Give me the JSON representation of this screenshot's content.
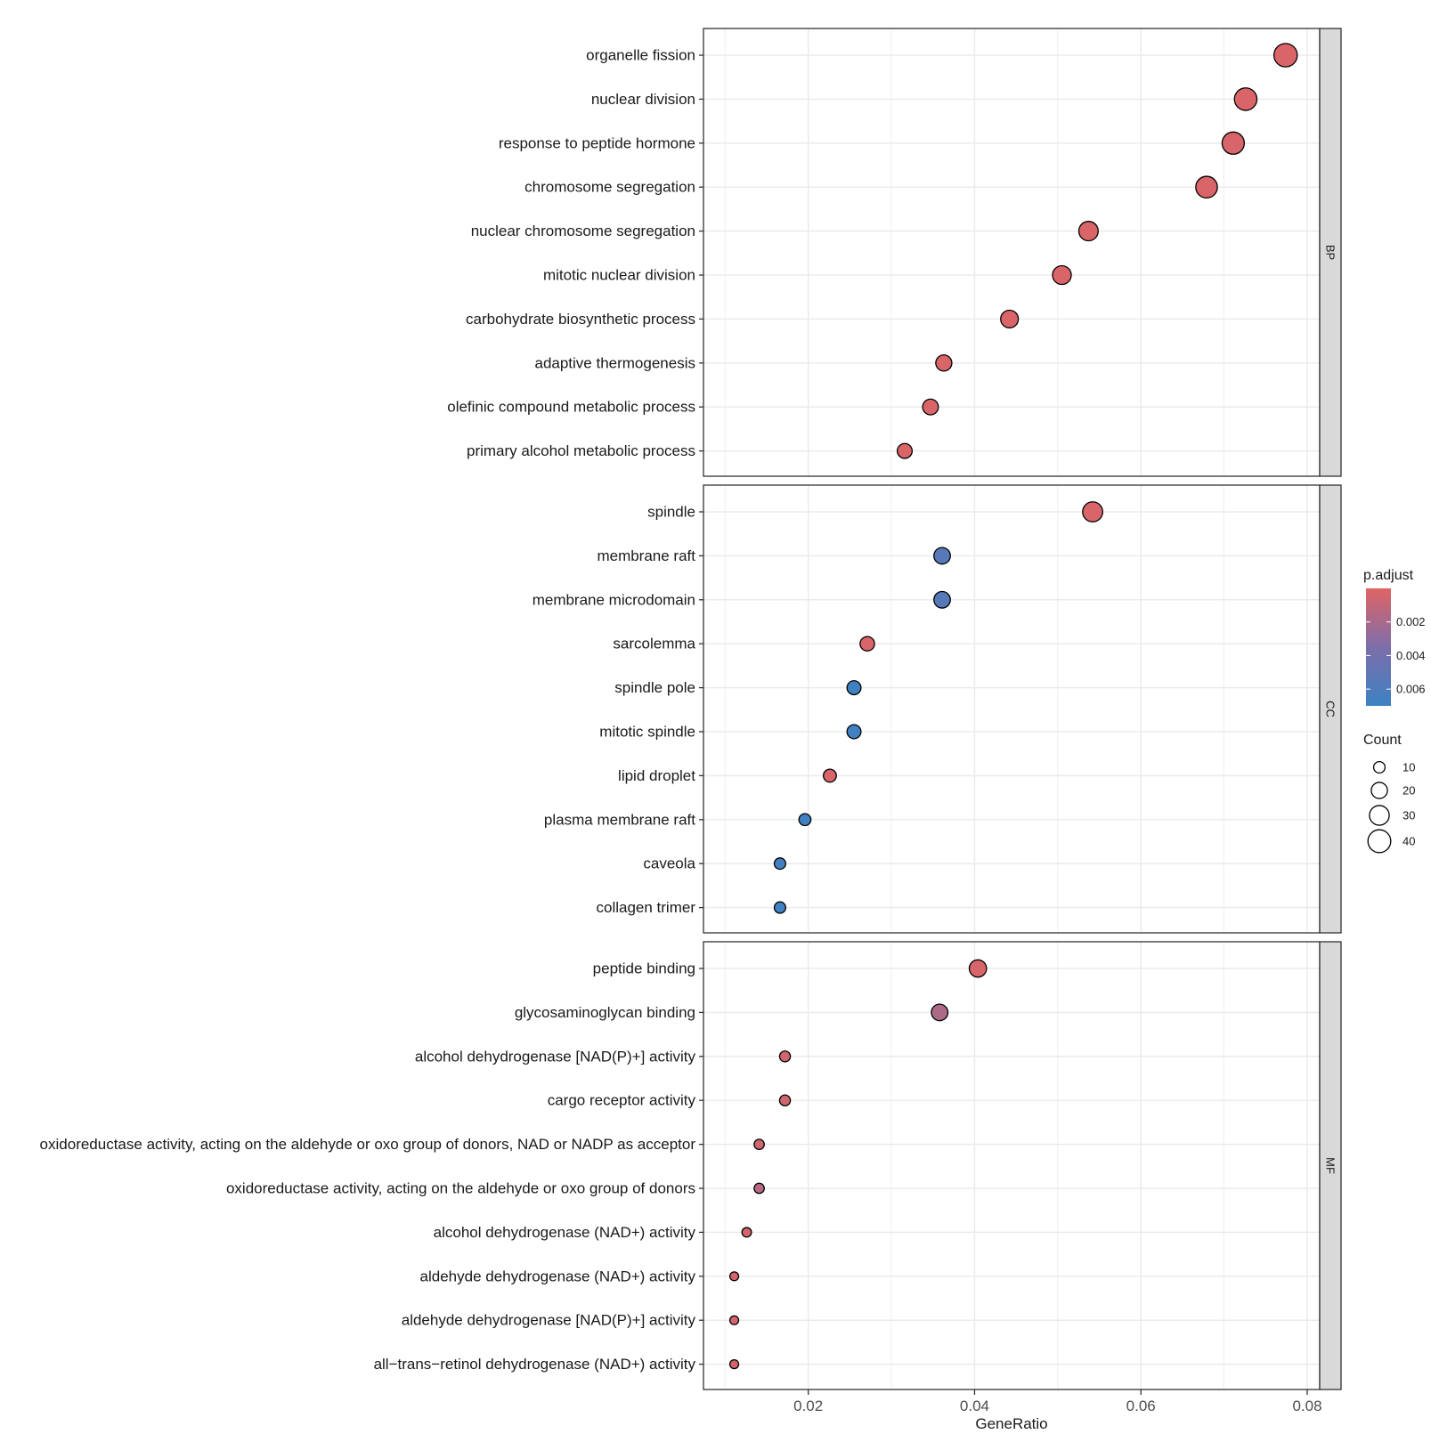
{
  "chart_data": {
    "type": "scatter",
    "xlabel": "GeneRatio",
    "xlim": [
      0.0074,
      0.0815
    ],
    "xticks": [
      0.02,
      0.04,
      0.06,
      0.08
    ],
    "xtick_labels": [
      "0.02",
      "0.04",
      "0.06",
      "0.08"
    ],
    "grid": true,
    "facets": [
      {
        "name": "BP",
        "terms": [
          {
            "label": "organelle fission",
            "gene_ratio": 0.0774,
            "count": 42,
            "p_adjust": 0.0002
          },
          {
            "label": "nuclear division",
            "gene_ratio": 0.0726,
            "count": 39,
            "p_adjust": 0.0002
          },
          {
            "label": "response to peptide hormone",
            "gene_ratio": 0.0711,
            "count": 38,
            "p_adjust": 0.0003
          },
          {
            "label": "chromosome segregation",
            "gene_ratio": 0.0679,
            "count": 36,
            "p_adjust": 0.0002
          },
          {
            "label": "nuclear chromosome segregation",
            "gene_ratio": 0.0537,
            "count": 29,
            "p_adjust": 0.0002
          },
          {
            "label": "mitotic nuclear division",
            "gene_ratio": 0.0505,
            "count": 27,
            "p_adjust": 0.0002
          },
          {
            "label": "carbohydrate biosynthetic process",
            "gene_ratio": 0.0442,
            "count": 24,
            "p_adjust": 0.0002
          },
          {
            "label": "adaptive thermogenesis",
            "gene_ratio": 0.0363,
            "count": 20,
            "p_adjust": 0.0002
          },
          {
            "label": "olefinic compound metabolic process",
            "gene_ratio": 0.0347,
            "count": 19,
            "p_adjust": 0.0002
          },
          {
            "label": "primary alcohol metabolic process",
            "gene_ratio": 0.0316,
            "count": 17,
            "p_adjust": 0.0002
          }
        ]
      },
      {
        "name": "CC",
        "terms": [
          {
            "label": "spindle",
            "gene_ratio": 0.0542,
            "count": 31,
            "p_adjust": 0.0003
          },
          {
            "label": "membrane raft",
            "gene_ratio": 0.0361,
            "count": 21,
            "p_adjust": 0.0055
          },
          {
            "label": "membrane microdomain",
            "gene_ratio": 0.0361,
            "count": 21,
            "p_adjust": 0.0055
          },
          {
            "label": "sarcolemma",
            "gene_ratio": 0.0271,
            "count": 16,
            "p_adjust": 0.0003
          },
          {
            "label": "spindle pole",
            "gene_ratio": 0.0255,
            "count": 15,
            "p_adjust": 0.0068
          },
          {
            "label": "mitotic spindle",
            "gene_ratio": 0.0255,
            "count": 15,
            "p_adjust": 0.0068
          },
          {
            "label": "lipid droplet",
            "gene_ratio": 0.0226,
            "count": 13,
            "p_adjust": 0.0003
          },
          {
            "label": "plasma membrane raft",
            "gene_ratio": 0.0196,
            "count": 11,
            "p_adjust": 0.0068
          },
          {
            "label": "caveola",
            "gene_ratio": 0.0166,
            "count": 10,
            "p_adjust": 0.0066
          },
          {
            "label": "collagen trimer",
            "gene_ratio": 0.0166,
            "count": 10,
            "p_adjust": 0.0068
          }
        ]
      },
      {
        "name": "MF",
        "terms": [
          {
            "label": "peptide binding",
            "gene_ratio": 0.0404,
            "count": 23,
            "p_adjust": 0.0003
          },
          {
            "label": "glycosaminoglycan binding",
            "gene_ratio": 0.0358,
            "count": 21,
            "p_adjust": 0.0018
          },
          {
            "label": "alcohol dehydrogenase [NAD(P)+] activity",
            "gene_ratio": 0.0172,
            "count": 9,
            "p_adjust": 0.0006
          },
          {
            "label": "cargo receptor activity",
            "gene_ratio": 0.0172,
            "count": 9,
            "p_adjust": 0.0006
          },
          {
            "label": "oxidoreductase activity, acting on the aldehyde or oxo group of donors, NAD or NADP as acceptor",
            "gene_ratio": 0.0141,
            "count": 8,
            "p_adjust": 0.0006
          },
          {
            "label": "oxidoreductase activity, acting on the aldehyde or oxo group of donors",
            "gene_ratio": 0.0141,
            "count": 8,
            "p_adjust": 0.0014
          },
          {
            "label": "alcohol dehydrogenase (NAD+) activity",
            "gene_ratio": 0.0126,
            "count": 7,
            "p_adjust": 0.0004
          },
          {
            "label": "aldehyde dehydrogenase (NAD+) activity",
            "gene_ratio": 0.0111,
            "count": 6,
            "p_adjust": 0.0004
          },
          {
            "label": "aldehyde dehydrogenase [NAD(P)+] activity",
            "gene_ratio": 0.0111,
            "count": 6,
            "p_adjust": 0.0004
          },
          {
            "label": "all−trans−retinol dehydrogenase (NAD+) activity",
            "gene_ratio": 0.0111,
            "count": 6,
            "p_adjust": 0.0004
          }
        ]
      }
    ],
    "legend": {
      "placement": "right",
      "color": {
        "title": "p.adjust",
        "low_color": "#E06464",
        "high_color": "#3C82C3",
        "range": [
          0.0,
          0.007
        ],
        "breaks": [
          0.002,
          0.004,
          0.006
        ],
        "break_labels": [
          "0.002",
          "0.004",
          "0.006"
        ]
      },
      "size": {
        "title": "Count",
        "breaks": [
          10,
          20,
          30,
          40
        ],
        "break_labels": [
          "10",
          "20",
          "30",
          "40"
        ]
      }
    },
    "colors": {
      "panel_border": "#333333",
      "grid": "#ebebeb",
      "strip_fill": "#d9d9d9"
    }
  }
}
